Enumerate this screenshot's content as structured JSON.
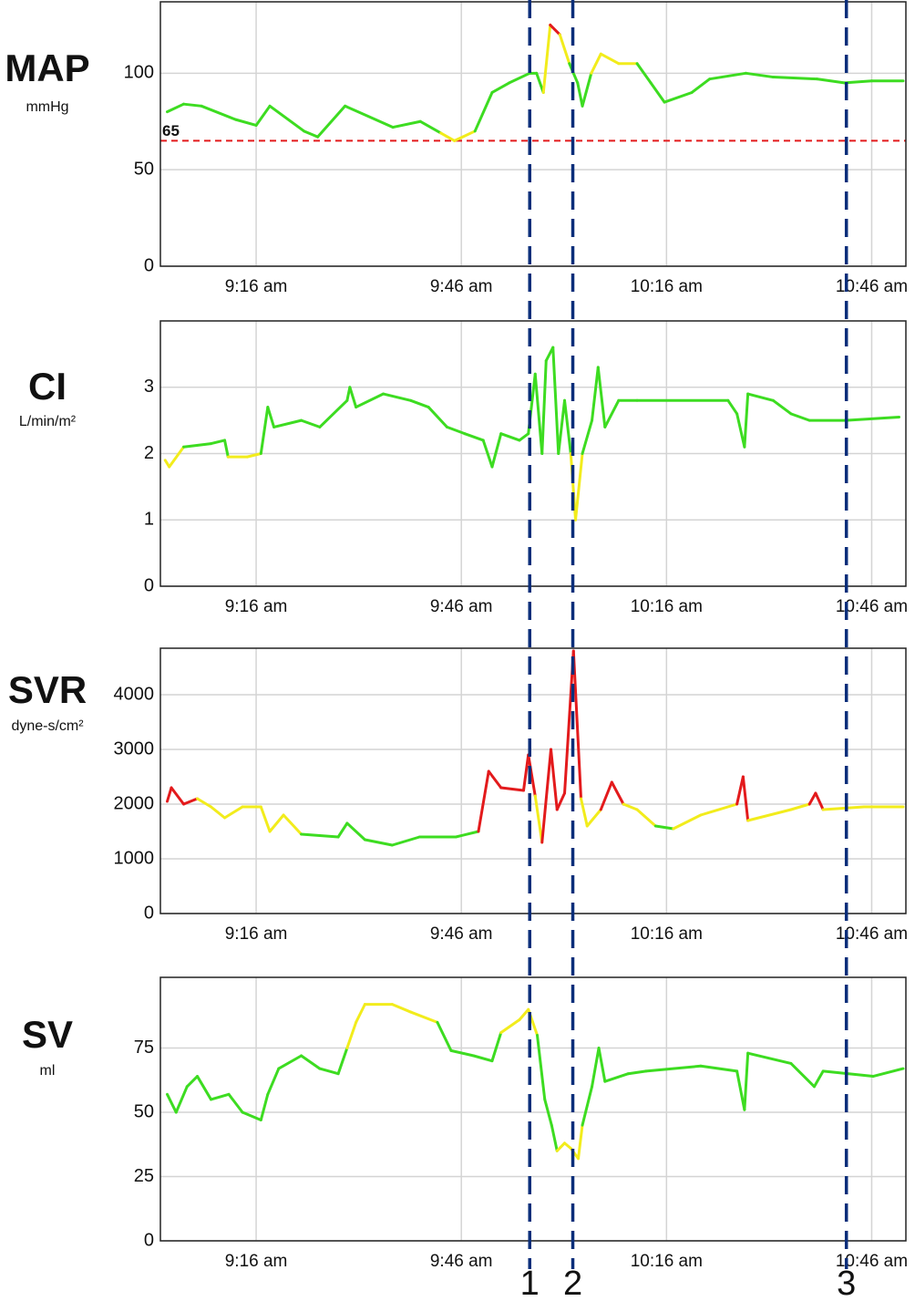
{
  "chart_data": [
    {
      "type": "line",
      "title": "MAP",
      "subtitle": "mmHg",
      "x": [
        543,
        545.4,
        548,
        553,
        556,
        558,
        563,
        565,
        569,
        576,
        580,
        583,
        585,
        588,
        590.5,
        593,
        596,
        597,
        598,
        599,
        600.4,
        601.8,
        603,
        603.7,
        605,
        606.4,
        609,
        611.7,
        613.7,
        615.7,
        619.7,
        622.3,
        627.6,
        631.6,
        638,
        642,
        646,
        650.6
      ],
      "values": [
        80,
        84,
        83,
        76,
        73,
        83,
        70,
        67,
        83,
        72,
        75,
        69,
        65,
        70,
        90,
        95,
        100,
        100,
        90,
        125,
        120,
        105,
        95,
        83,
        100,
        110,
        105,
        105,
        95,
        85,
        90,
        97,
        100,
        98,
        97,
        95,
        96,
        96
      ],
      "zones": [
        {
          "from": 0,
          "color": "#f2ec1c"
        },
        {
          "from": 68,
          "color": "#3ddc21"
        },
        {
          "from": 101,
          "color": "#f2ec1c"
        },
        {
          "from": 118,
          "color": "#e31a1c"
        }
      ],
      "threshold": 65,
      "threshold_color": "#e31a1c",
      "xlim": [
        542,
        651
      ],
      "ylim": [
        0,
        137
      ],
      "yticks": [
        0,
        50,
        100
      ],
      "xticks": [
        {
          "value": 556,
          "label": "9:16 am"
        },
        {
          "value": 586,
          "label": "9:46 am"
        },
        {
          "value": 616,
          "label": "10:16 am"
        },
        {
          "value": 646,
          "label": "10:46 am"
        }
      ]
    },
    {
      "type": "line",
      "title": "CI",
      "subtitle": "L/min/m²",
      "x": [
        542.7,
        543.3,
        545.4,
        549.4,
        551.4,
        551.9,
        554.7,
        556.7,
        557.7,
        558.6,
        562.6,
        565.3,
        569.3,
        569.7,
        570.6,
        574.6,
        578.6,
        581.2,
        583.9,
        586.5,
        589.2,
        590.5,
        591.8,
        594.5,
        595.8,
        596.8,
        597.8,
        598.4,
        599.4,
        600.2,
        601.1,
        602,
        602.7,
        603.7,
        605.1,
        606,
        607,
        609,
        611.7,
        625,
        626.3,
        627.4,
        627.9,
        631.6,
        634.2,
        636.9,
        642.2,
        650
      ],
      "values": [
        1.9,
        1.8,
        2.1,
        2.15,
        2.2,
        1.95,
        1.95,
        2.0,
        2.7,
        2.4,
        2.5,
        2.4,
        2.8,
        3.0,
        2.7,
        2.9,
        2.8,
        2.7,
        2.4,
        2.3,
        2.2,
        1.8,
        2.3,
        2.2,
        2.3,
        3.2,
        2.0,
        3.4,
        3.6,
        2.0,
        2.8,
        2.0,
        1.0,
        2.0,
        2.5,
        3.3,
        2.4,
        2.8,
        2.8,
        2.8,
        2.6,
        2.1,
        2.9,
        2.8,
        2.6,
        2.5,
        2.5,
        2.55
      ],
      "zones": [
        {
          "from": 0,
          "color": "#f2ec1c"
        },
        {
          "from": 2.0,
          "color": "#3ddc21"
        }
      ],
      "xlim": [
        542,
        651
      ],
      "ylim": [
        0,
        4
      ],
      "yticks": [
        0,
        1,
        2,
        3
      ],
      "xticks": [
        {
          "value": 556,
          "label": "9:16 am"
        },
        {
          "value": 586,
          "label": "9:46 am"
        },
        {
          "value": 616,
          "label": "10:16 am"
        },
        {
          "value": 646,
          "label": "10:46 am"
        }
      ]
    },
    {
      "type": "line",
      "title": "SVR",
      "subtitle": "dyne-s/cm²",
      "x": [
        543,
        543.6,
        545.4,
        547.4,
        549.4,
        551.4,
        554,
        556.7,
        558,
        560,
        562.6,
        568,
        569.3,
        571.9,
        575.9,
        579.9,
        585.2,
        588.5,
        590,
        591.8,
        595.1,
        595.8,
        596.8,
        597.8,
        599.1,
        600,
        601.1,
        602.4,
        603.5,
        604.4,
        606.4,
        608,
        609.7,
        611.7,
        614.4,
        617,
        621,
        626.3,
        627.2,
        627.9,
        634.2,
        636.9,
        637.8,
        638.9,
        644.9,
        650.6
      ],
      "values": [
        2050,
        2300,
        2000,
        2100,
        1950,
        1750,
        1950,
        1950,
        1500,
        1800,
        1450,
        1400,
        1650,
        1350,
        1250,
        1400,
        1400,
        1500,
        2600,
        2300,
        2250,
        2900,
        2150,
        1300,
        3000,
        1900,
        2200,
        4800,
        2100,
        1600,
        1900,
        2400,
        2000,
        1900,
        1600,
        1550,
        1800,
        2000,
        2500,
        1700,
        1900,
        2000,
        2200,
        1900,
        1950,
        1950
      ],
      "zones": [
        {
          "from": 0,
          "color": "#f2ec1c"
        },
        {
          "from": 1300,
          "color": "#3ddc21"
        },
        {
          "from": 1600,
          "color": "#f2ec1c"
        },
        {
          "from": 2050,
          "color": "#e31a1c"
        }
      ],
      "xlim": [
        542,
        651
      ],
      "ylim": [
        0,
        4850
      ],
      "yticks": [
        0,
        1000,
        2000,
        3000,
        4000
      ],
      "xticks": [
        {
          "value": 556,
          "label": "9:16 am"
        },
        {
          "value": 586,
          "label": "9:46 am"
        },
        {
          "value": 616,
          "label": "10:16 am"
        },
        {
          "value": 646,
          "label": "10:46 am"
        }
      ]
    },
    {
      "type": "line",
      "title": "SV",
      "subtitle": "ml",
      "x": [
        543,
        544.3,
        545.9,
        547.4,
        549.4,
        552,
        554,
        556.7,
        557.7,
        559.3,
        562.6,
        565.3,
        568,
        569.3,
        570.6,
        571.9,
        575.9,
        578.6,
        582.5,
        584.5,
        587.8,
        590.5,
        591.8,
        594.5,
        595.8,
        597.1,
        598.2,
        599.2,
        600,
        601.1,
        602,
        603.1,
        603.7,
        605.1,
        606.1,
        607,
        610.4,
        613,
        621,
        626.3,
        627.4,
        627.9,
        634.2,
        637.6,
        638.9,
        646.2,
        650.6
      ],
      "values": [
        57,
        50,
        60,
        64,
        55,
        57,
        50,
        47,
        57,
        67,
        72,
        67,
        65,
        75,
        85,
        92,
        92,
        89,
        85,
        74,
        72,
        70,
        81,
        86,
        90,
        80,
        55,
        45,
        35,
        38,
        36,
        32,
        45,
        60,
        75,
        62,
        65,
        66,
        68,
        66,
        51,
        73,
        69,
        60,
        66,
        64,
        67
      ],
      "zones": [
        {
          "from": 0,
          "color": "#f2ec1c"
        },
        {
          "from": 40,
          "color": "#3ddc21"
        },
        {
          "from": 80,
          "color": "#f2ec1c"
        }
      ],
      "xlim": [
        542,
        651
      ],
      "ylim": [
        0,
        102.5
      ],
      "yticks": [
        0,
        25,
        50,
        75
      ],
      "xticks": [
        {
          "value": 556,
          "label": "9:16 am"
        },
        {
          "value": 586,
          "label": "9:46 am"
        },
        {
          "value": 616,
          "label": "10:16 am"
        },
        {
          "value": 646,
          "label": "10:46 am"
        }
      ]
    }
  ],
  "markers": [
    {
      "x": 596,
      "label": "1"
    },
    {
      "x": 602.3,
      "label": "2"
    },
    {
      "x": 642.3,
      "label": "3"
    }
  ],
  "marker_color": "#0b2e7a"
}
